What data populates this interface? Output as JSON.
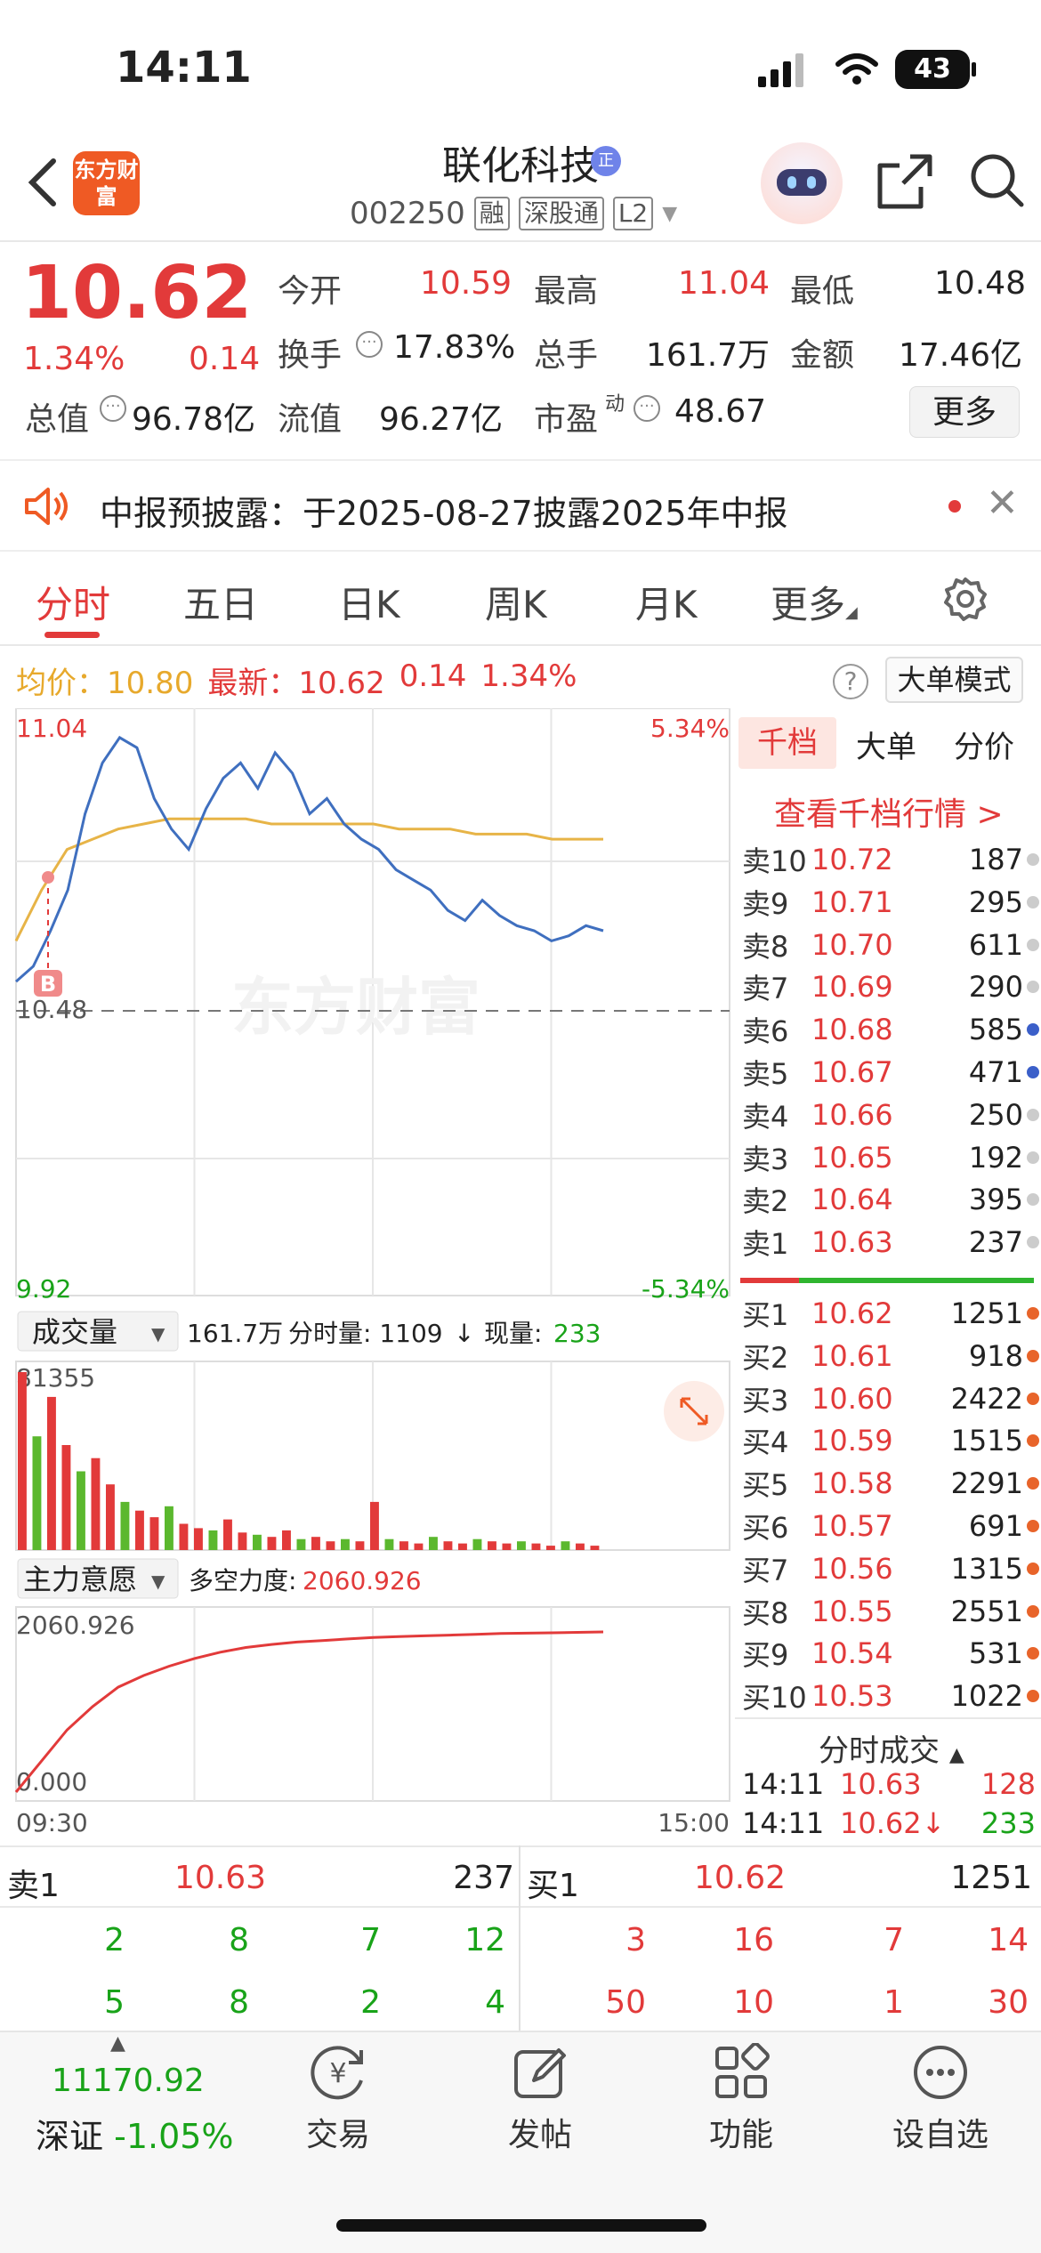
{
  "status": {
    "time": "14:11",
    "battery": "43"
  },
  "header": {
    "logo": "东方财富",
    "title": "联化科技",
    "title_badge": "正",
    "code": "002250",
    "tags": [
      "融",
      "深股通",
      "L2"
    ]
  },
  "quote": {
    "price": "10.62",
    "pct": "1.34%",
    "change": "0.14",
    "open_label": "今开",
    "open": "10.59",
    "high_label": "最高",
    "high": "11.04",
    "low_label": "最低",
    "low": "10.48",
    "turnover_label": "换手",
    "turnover": "17.83%",
    "volume_label": "总手",
    "volume": "161.7万",
    "amount_label": "金额",
    "amount": "17.46亿",
    "mktcap_label": "总值",
    "mktcap": "96.78亿",
    "float_label": "流值",
    "float": "96.27亿",
    "pe_label": "市盈",
    "pe_sup": "动",
    "pe": "48.67",
    "more": "更多"
  },
  "notice": {
    "text": "中报预披露：于2025-08-27披露2025年中报"
  },
  "tabs": [
    "分时",
    "五日",
    "日K",
    "周K",
    "月K",
    "更多"
  ],
  "avg": {
    "avg_label": "均价：",
    "avg": "10.80",
    "latest_label": "最新：",
    "latest": "10.62",
    "chg": "0.14",
    "pct": "1.34%",
    "mode": "大单模式",
    "help": "?"
  },
  "price_chart": {
    "max": "11.04",
    "min": "9.92",
    "max_pct": "5.34%",
    "min_pct": "-5.34%",
    "ref": "10.48",
    "buy_marker": "B",
    "watermark": "东方财富"
  },
  "volume_panel": {
    "selector": "成交量",
    "total": "161.7万",
    "tick_label": "分时量: 1109",
    "arrow": "↓",
    "now_label": "现量:",
    "now": "233",
    "axis_max": "81355"
  },
  "force_panel": {
    "selector": "主力意愿",
    "label": "多空力度:",
    "value": "2060.926",
    "axis_max": "2060.926",
    "axis_min": "0.000"
  },
  "time_axis": {
    "start": "09:30",
    "end": "15:00"
  },
  "chart_data": [
    {
      "type": "line",
      "title": "",
      "series": [
        {
          "name": "",
          "values": [
            10.52,
            10.55,
            10.62,
            10.7,
            10.85,
            10.95,
            11.0,
            10.98,
            10.88,
            10.82,
            10.78,
            10.86,
            10.92,
            10.95,
            10.9,
            10.97,
            10.93,
            10.85,
            10.88,
            10.83,
            10.8,
            10.78,
            10.74,
            10.72,
            10.7,
            10.66,
            10.64,
            10.68,
            10.65,
            10.63,
            10.62,
            10.6,
            10.61,
            10.63,
            10.62
          ]
        },
        {
          "name": "",
          "values": [
            10.6,
            10.7,
            10.78,
            10.8,
            10.82,
            10.83,
            10.84,
            10.84,
            10.84,
            10.84,
            10.83,
            10.83,
            10.83,
            10.83,
            10.83,
            10.82,
            10.82,
            10.82,
            10.81,
            10.81,
            10.81,
            10.8,
            10.8,
            10.8
          ]
        }
      ],
      "ylim": [
        9.92,
        11.04
      ]
    },
    {
      "type": "bar",
      "title": "成交量",
      "ylim": [
        0,
        81355
      ],
      "series": [
        {
          "name": "",
          "values": [
            81355,
            52000,
            70000,
            48000,
            36000,
            42000,
            30000,
            22000,
            18000,
            15000,
            20000,
            12000,
            10000,
            9000,
            14000,
            8000,
            7000,
            6000,
            9000,
            5000,
            6000,
            4000,
            5000,
            4000,
            22000,
            5000,
            4000,
            3000,
            6000,
            4000,
            3000,
            5000,
            4000,
            3000,
            4000,
            3000,
            2000,
            4000,
            3000,
            2000
          ]
        }
      ]
    },
    {
      "type": "line",
      "title": "主力意愿",
      "ylim": [
        0,
        2060.926
      ],
      "series": [
        {
          "name": "",
          "values": [
            0,
            400,
            800,
            1100,
            1350,
            1500,
            1620,
            1720,
            1800,
            1860,
            1900,
            1930,
            1950,
            1970,
            1990,
            2000,
            2010,
            2020,
            2030,
            2040,
            2045,
            2050,
            2055,
            2060.926
          ]
        }
      ]
    }
  ],
  "orderbook": {
    "tabs": [
      "千档",
      "大单",
      "分价"
    ],
    "link": "查看千档行情 >",
    "asks": [
      {
        "label": "卖10",
        "price": "10.72",
        "vol": "187",
        "dot": "#cccccc"
      },
      {
        "label": "卖9",
        "price": "10.71",
        "vol": "295",
        "dot": "#cccccc"
      },
      {
        "label": "卖8",
        "price": "10.70",
        "vol": "611",
        "dot": "#cccccc"
      },
      {
        "label": "卖7",
        "price": "10.69",
        "vol": "290",
        "dot": "#cccccc"
      },
      {
        "label": "卖6",
        "price": "10.68",
        "vol": "585",
        "dot": "#3b5fc9"
      },
      {
        "label": "卖5",
        "price": "10.67",
        "vol": "471",
        "dot": "#3b5fc9"
      },
      {
        "label": "卖4",
        "price": "10.66",
        "vol": "250",
        "dot": "#cccccc"
      },
      {
        "label": "卖3",
        "price": "10.65",
        "vol": "192",
        "dot": "#cccccc"
      },
      {
        "label": "卖2",
        "price": "10.64",
        "vol": "395",
        "dot": "#cccccc"
      },
      {
        "label": "卖1",
        "price": "10.63",
        "vol": "237",
        "dot": "#cccccc"
      }
    ],
    "bids": [
      {
        "label": "买1",
        "price": "10.62",
        "vol": "1251",
        "dot": "#e8642a"
      },
      {
        "label": "买2",
        "price": "10.61",
        "vol": "918",
        "dot": "#e8642a"
      },
      {
        "label": "买3",
        "price": "10.60",
        "vol": "2422",
        "dot": "#e8642a"
      },
      {
        "label": "买4",
        "price": "10.59",
        "vol": "1515",
        "dot": "#e8642a"
      },
      {
        "label": "买5",
        "price": "10.58",
        "vol": "2291",
        "dot": "#e8642a"
      },
      {
        "label": "买6",
        "price": "10.57",
        "vol": "691",
        "dot": "#e8642a"
      },
      {
        "label": "买7",
        "price": "10.56",
        "vol": "1315",
        "dot": "#e8642a"
      },
      {
        "label": "买8",
        "price": "10.55",
        "vol": "2551",
        "dot": "#e8642a"
      },
      {
        "label": "买9",
        "price": "10.54",
        "vol": "531",
        "dot": "#e8642a"
      },
      {
        "label": "买10",
        "price": "10.53",
        "vol": "1022",
        "dot": "#e8642a"
      }
    ],
    "fs_title": "分时成交",
    "trades": [
      {
        "time": "14:11",
        "price": "10.63",
        "vol": "128",
        "color": "#e23a3a"
      },
      {
        "time": "14:11",
        "price": "10.62↓",
        "vol": "233",
        "color": "#19a319"
      }
    ]
  },
  "bottom_book": {
    "sell_label": "卖1",
    "sell_price": "10.63",
    "sell_vol": "237",
    "buy_label": "买1",
    "buy_price": "10.62",
    "buy_vol": "1251",
    "sell_rows": [
      [
        "2",
        "8",
        "7",
        "12"
      ],
      [
        "5",
        "8",
        "2",
        "4"
      ]
    ],
    "buy_rows": [
      [
        "3",
        "16",
        "7",
        "14"
      ],
      [
        "50",
        "10",
        "1",
        "30"
      ]
    ]
  },
  "footer": {
    "index_value": "11170.92",
    "index_name": "深证",
    "index_pct": "-1.05%",
    "items": [
      "交易",
      "发帖",
      "功能",
      "设自选"
    ]
  }
}
